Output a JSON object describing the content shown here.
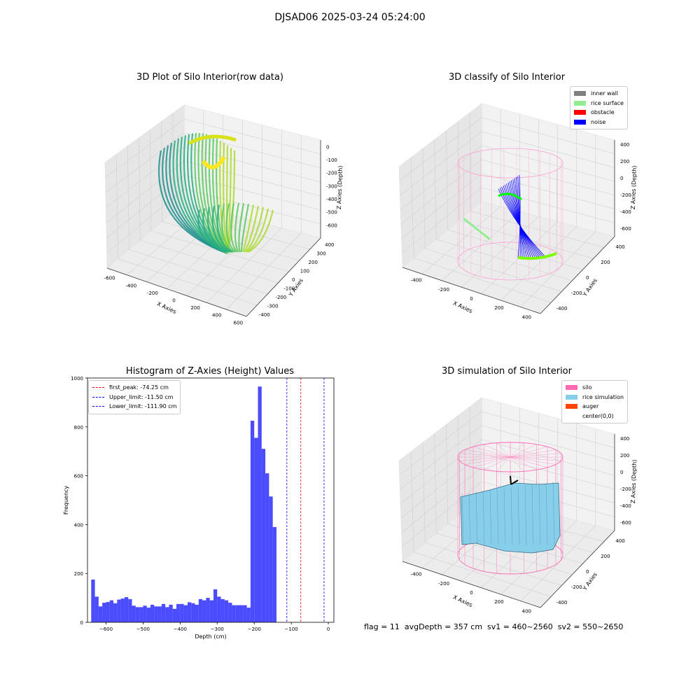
{
  "figure": {
    "suptitle": "DJSAD06 2025-03-24 05:24:00",
    "status_text": "flag = 11  avgDepth = 357 cm  sv1 = 460~2560  sv2 = 550~2650"
  },
  "chart_data": [
    {
      "type": "scatter",
      "subtype": "3d",
      "title": "3D Plot of Silo Interior(row data)",
      "xlabel": "X Axies",
      "ylabel": "Y Axies",
      "zlabel": "Z Axies (Depth)",
      "xticks": [
        -600,
        -400,
        -200,
        0,
        200,
        400,
        600
      ],
      "yticks": [
        400,
        300,
        200,
        100,
        0,
        -100,
        -200,
        -300,
        -400
      ],
      "zticks": [
        0,
        -100,
        -200,
        -300,
        -400,
        -500,
        -600
      ],
      "xlim": [
        -650,
        650
      ],
      "ylim": [
        -450,
        450
      ],
      "zlim": [
        -700,
        50
      ],
      "colormap": "viridis",
      "grid": true
    },
    {
      "type": "scatter",
      "subtype": "3d",
      "title": "3D classify of Silo Interior",
      "xlabel": "X Axies",
      "ylabel": "Y Axies",
      "zlabel": "Z Axies (Depth)",
      "xticks": [
        -400,
        -200,
        0,
        200,
        400
      ],
      "yticks": [
        400,
        200,
        0,
        -200,
        -400
      ],
      "zticks": [
        400,
        200,
        0,
        -200,
        -400,
        -600
      ],
      "legend": [
        {
          "label": "inner wall",
          "color": "#808080"
        },
        {
          "label": "rice surface",
          "color": "#90ee90"
        },
        {
          "label": "obstacle",
          "color": "#ff0000"
        },
        {
          "label": "noise",
          "color": "#0000ff"
        }
      ],
      "legend_position": "top-right",
      "grid": true
    },
    {
      "type": "bar",
      "subtype": "histogram",
      "title": "Histogram of Z-Axies (Height) Values",
      "xlabel": "Depth (cm)",
      "ylabel": "Frequency",
      "xlim": [
        -650,
        15
      ],
      "ylim": [
        0,
        1000
      ],
      "xticks": [
        -600,
        -500,
        -400,
        -300,
        -200,
        -100,
        0
      ],
      "yticks": [
        0,
        200,
        400,
        600,
        800,
        1000
      ],
      "bin_start": -640,
      "bin_width": 10,
      "values": [
        175,
        105,
        65,
        80,
        83,
        90,
        78,
        93,
        97,
        103,
        95,
        68,
        62,
        62,
        68,
        60,
        72,
        65,
        65,
        75,
        62,
        72,
        55,
        75,
        75,
        70,
        82,
        78,
        72,
        95,
        90,
        100,
        90,
        135,
        105,
        95,
        90,
        80,
        70,
        70,
        70,
        70,
        60,
        825,
        755,
        965,
        710,
        610,
        515,
        390
      ],
      "bar_color": "#0000ff",
      "lines": [
        {
          "label": "first_peak: -74.25 cm",
          "value": -74.25,
          "color": "#ff0000"
        },
        {
          "label": "Upper_limit: -11.50 cm",
          "value": -11.5,
          "color": "#0000ff"
        },
        {
          "label": "Lower_limit: -111.90 cm",
          "value": -111.9,
          "color": "#0000ff"
        }
      ],
      "legend_position": "top-left"
    },
    {
      "type": "surface",
      "subtype": "3d",
      "title": "3D simulation of Silo Interior",
      "xlabel": "X Axies",
      "ylabel": "Y Axies",
      "zlabel": "Z Axies (Depth)",
      "xticks": [
        -400,
        -200,
        0,
        200,
        400
      ],
      "yticks": [
        400,
        200,
        0,
        -200,
        -400
      ],
      "zticks": [
        400,
        200,
        0,
        -200,
        -400,
        -600
      ],
      "legend": [
        {
          "label": "silo",
          "color": "#ff69b4"
        },
        {
          "label": "rice simulation",
          "color": "#87ceeb"
        },
        {
          "label": "auger",
          "color": "#ff4500"
        },
        {
          "label": "center(0,0)",
          "color": ""
        }
      ],
      "legend_position": "top-right",
      "grid": true
    }
  ]
}
